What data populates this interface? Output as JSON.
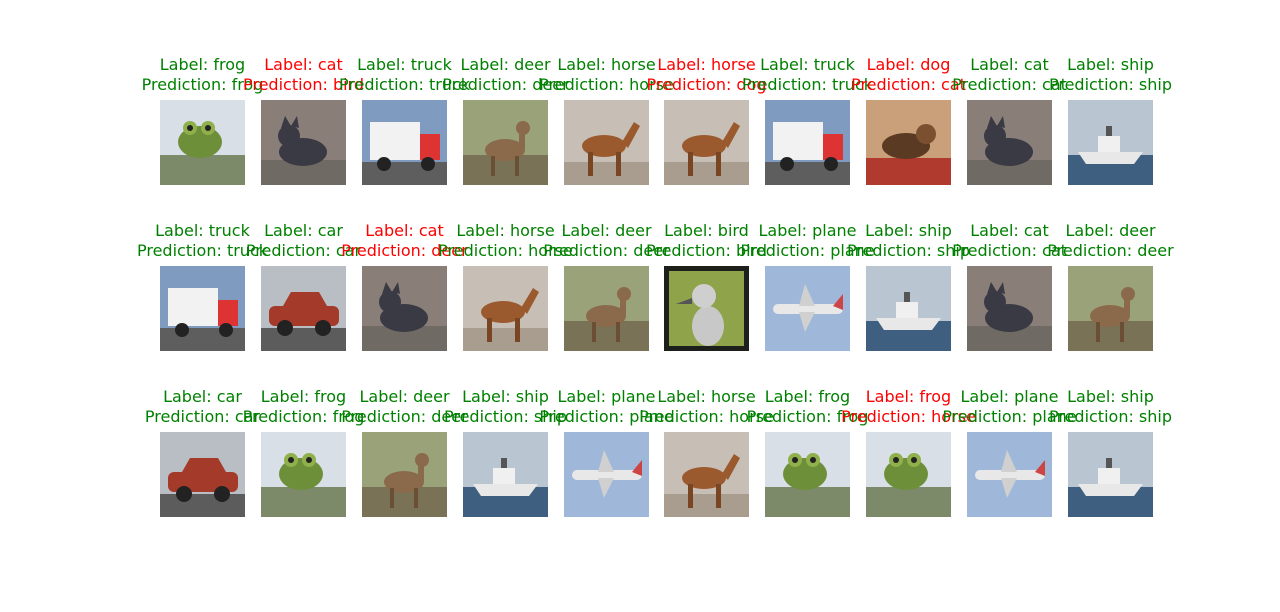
{
  "colors": {
    "correct": "#008000",
    "incorrect": "#ff0000"
  },
  "chart_data": {
    "type": "image-grid",
    "rows": 3,
    "cols": 10,
    "items": [
      {
        "label": "Label: frog",
        "prediction": "Prediction: frog",
        "correct": true,
        "icon": "frog-photo"
      },
      {
        "label": "Label: cat",
        "prediction": "Prediction: bird",
        "correct": false,
        "icon": "cat-photo"
      },
      {
        "label": "Label: truck",
        "prediction": "Prediction: truck",
        "correct": true,
        "icon": "truck-photo"
      },
      {
        "label": "Label: deer",
        "prediction": "Prediction: deer",
        "correct": true,
        "icon": "deer-photo"
      },
      {
        "label": "Label: horse",
        "prediction": "Prediction: horse",
        "correct": true,
        "icon": "horse-photo"
      },
      {
        "label": "Label: horse",
        "prediction": "Prediction: dog",
        "correct": false,
        "icon": "horse-photo"
      },
      {
        "label": "Label: truck",
        "prediction": "Prediction: truck",
        "correct": true,
        "icon": "truck-photo"
      },
      {
        "label": "Label: dog",
        "prediction": "Prediction: cat",
        "correct": false,
        "icon": "dog-photo"
      },
      {
        "label": "Label: cat",
        "prediction": "Prediction: cat",
        "correct": true,
        "icon": "cat-photo"
      },
      {
        "label": "Label: ship",
        "prediction": "Prediction: ship",
        "correct": true,
        "icon": "ship-photo"
      },
      {
        "label": "Label: truck",
        "prediction": "Prediction: truck",
        "correct": true,
        "icon": "truck-photo"
      },
      {
        "label": "Label: car",
        "prediction": "Prediction: car",
        "correct": true,
        "icon": "car-photo"
      },
      {
        "label": "Label: cat",
        "prediction": "Prediction: deer",
        "correct": false,
        "icon": "cat-photo"
      },
      {
        "label": "Label: horse",
        "prediction": "Prediction: horse",
        "correct": true,
        "icon": "horse-photo"
      },
      {
        "label": "Label: deer",
        "prediction": "Prediction: deer",
        "correct": true,
        "icon": "deer-photo"
      },
      {
        "label": "Label: bird",
        "prediction": "Prediction: bird",
        "correct": true,
        "icon": "bird-photo"
      },
      {
        "label": "Label: plane",
        "prediction": "Prediction: plane",
        "correct": true,
        "icon": "plane-photo"
      },
      {
        "label": "Label: ship",
        "prediction": "Prediction: ship",
        "correct": true,
        "icon": "ship-photo"
      },
      {
        "label": "Label: cat",
        "prediction": "Prediction: cat",
        "correct": true,
        "icon": "cat-photo"
      },
      {
        "label": "Label: deer",
        "prediction": "Prediction: deer",
        "correct": true,
        "icon": "deer-photo"
      },
      {
        "label": "Label: car",
        "prediction": "Prediction: car",
        "correct": true,
        "icon": "car-photo"
      },
      {
        "label": "Label: frog",
        "prediction": "Prediction: frog",
        "correct": true,
        "icon": "frog-photo"
      },
      {
        "label": "Label: deer",
        "prediction": "Prediction: deer",
        "correct": true,
        "icon": "deer-photo"
      },
      {
        "label": "Label: ship",
        "prediction": "Prediction: ship",
        "correct": true,
        "icon": "ship-photo"
      },
      {
        "label": "Label: plane",
        "prediction": "Prediction: plane",
        "correct": true,
        "icon": "plane-photo"
      },
      {
        "label": "Label: horse",
        "prediction": "Prediction: horse",
        "correct": true,
        "icon": "horse-photo"
      },
      {
        "label": "Label: frog",
        "prediction": "Prediction: frog",
        "correct": true,
        "icon": "frog-photo"
      },
      {
        "label": "Label: frog",
        "prediction": "Prediction: horse",
        "correct": false,
        "icon": "frog-photo"
      },
      {
        "label": "Label: plane",
        "prediction": "Prediction: plane",
        "correct": true,
        "icon": "plane-photo"
      },
      {
        "label": "Label: ship",
        "prediction": "Prediction: ship",
        "correct": true,
        "icon": "ship-photo"
      }
    ]
  }
}
